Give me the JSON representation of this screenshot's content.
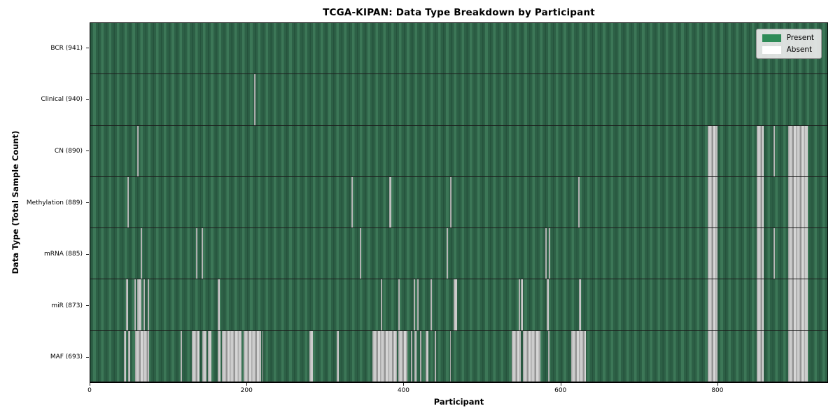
{
  "chart_data": {
    "type": "heatmap",
    "title": "TCGA-KIPAN: Data Type Breakdown by Participant",
    "xlabel": "Participant",
    "ylabel": "Data Type (Total Sample Count)",
    "x_max": 941,
    "x_ticks": [
      0,
      200,
      400,
      600,
      800
    ],
    "legend_position": "upper right",
    "grid": false,
    "legend": [
      {
        "label": "Present",
        "color": "#2e8b57"
      },
      {
        "label": "Absent",
        "color": "#ffffff"
      }
    ],
    "colors": {
      "present": "#2e8b57",
      "absent": "#ffffff",
      "row_separator": "#1b1b1b"
    },
    "rows": [
      {
        "label": "BCR",
        "count": 941,
        "absent": []
      },
      {
        "label": "Clinical",
        "count": 940,
        "absent": [
          [
            209,
            211
          ]
        ]
      },
      {
        "label": "CN",
        "count": 890,
        "absent": [
          [
            60,
            62
          ],
          [
            788,
            801
          ],
          [
            851,
            860
          ],
          [
            872,
            874
          ],
          [
            891,
            916
          ]
        ]
      },
      {
        "label": "Methylation",
        "count": 889,
        "absent": [
          [
            47,
            49
          ],
          [
            333,
            335
          ],
          [
            382,
            384
          ],
          [
            459,
            461
          ],
          [
            623,
            625
          ],
          [
            788,
            801
          ],
          [
            851,
            860
          ],
          [
            891,
            916
          ]
        ]
      },
      {
        "label": "mRNA",
        "count": 885,
        "absent": [
          [
            64,
            66
          ],
          [
            135,
            137
          ],
          [
            142,
            144
          ],
          [
            344,
            346
          ],
          [
            455,
            457
          ],
          [
            581,
            583
          ],
          [
            585,
            587
          ],
          [
            788,
            801
          ],
          [
            851,
            860
          ],
          [
            872,
            874
          ],
          [
            891,
            916
          ]
        ]
      },
      {
        "label": "miR",
        "count": 873,
        "absent": [
          [
            46,
            48
          ],
          [
            56,
            58
          ],
          [
            60,
            65
          ],
          [
            68,
            70
          ],
          [
            73,
            75
          ],
          [
            163,
            165
          ],
          [
            371,
            373
          ],
          [
            393,
            395
          ],
          [
            413,
            415
          ],
          [
            417,
            419
          ],
          [
            434,
            436
          ],
          [
            464,
            468
          ],
          [
            547,
            549
          ],
          [
            550,
            552
          ],
          [
            583,
            585
          ],
          [
            624,
            626
          ],
          [
            788,
            801
          ],
          [
            851,
            860
          ],
          [
            891,
            916
          ]
        ]
      },
      {
        "label": "MAF",
        "count": 693,
        "absent": [
          [
            43,
            46
          ],
          [
            48,
            51
          ],
          [
            57,
            75
          ],
          [
            115,
            117
          ],
          [
            130,
            139
          ],
          [
            143,
            148
          ],
          [
            150,
            155
          ],
          [
            163,
            166
          ],
          [
            168,
            193
          ],
          [
            196,
            218
          ],
          [
            220,
            221
          ],
          [
            280,
            284
          ],
          [
            315,
            317
          ],
          [
            360,
            391
          ],
          [
            393,
            405
          ],
          [
            409,
            411
          ],
          [
            414,
            416
          ],
          [
            421,
            423
          ],
          [
            428,
            432
          ],
          [
            440,
            441
          ],
          [
            459,
            460
          ],
          [
            538,
            550
          ],
          [
            552,
            575
          ],
          [
            584,
            586
          ],
          [
            614,
            633
          ],
          [
            788,
            801
          ],
          [
            851,
            860
          ],
          [
            891,
            916
          ]
        ]
      }
    ]
  }
}
